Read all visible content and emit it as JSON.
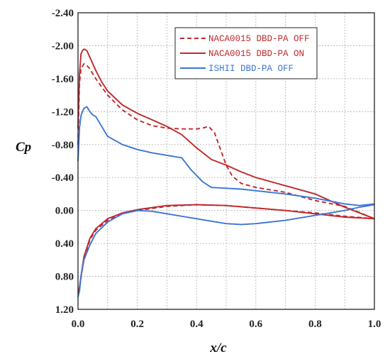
{
  "chart_data": {
    "type": "line",
    "title": "",
    "xlabel": "x/c",
    "ylabel": "Cp",
    "xlim": [
      0.0,
      1.0
    ],
    "ylim": [
      -2.4,
      1.2
    ],
    "y_inverted": true,
    "grid": true,
    "legend_position": "top-right",
    "x_ticks": [
      "0.0",
      "0.2",
      "0.4",
      "0.6",
      "0.8",
      "1.0"
    ],
    "y_ticks": [
      "-2.40",
      "-2.00",
      "-1.60",
      "-1.20",
      "-0.80",
      "-0.40",
      "0.00",
      "0.40",
      "0.80",
      "1.20"
    ],
    "series": [
      {
        "name": "NACA0015 DBD-PA OFF",
        "color": "#c0282d",
        "style": "dashed",
        "upper": {
          "x": [
            0.0,
            0.005,
            0.01,
            0.02,
            0.03,
            0.04,
            0.06,
            0.08,
            0.1,
            0.15,
            0.2,
            0.25,
            0.3,
            0.35,
            0.4,
            0.42,
            0.44,
            0.46,
            0.48,
            0.5,
            0.52,
            0.55,
            0.6,
            0.7,
            0.8,
            0.9,
            1.0
          ],
          "y": [
            -0.8,
            -1.55,
            -1.72,
            -1.78,
            -1.76,
            -1.72,
            -1.6,
            -1.5,
            -1.4,
            -1.22,
            -1.1,
            -1.03,
            -1.0,
            -0.99,
            -0.99,
            -1.0,
            -1.02,
            -0.95,
            -0.75,
            -0.55,
            -0.42,
            -0.33,
            -0.28,
            -0.22,
            -0.12,
            -0.05,
            0.1
          ]
        },
        "lower": {
          "x": [
            0.0,
            0.005,
            0.01,
            0.02,
            0.04,
            0.06,
            0.1,
            0.15,
            0.2,
            0.3,
            0.4,
            0.5,
            0.6,
            0.7,
            0.8,
            0.9,
            1.0
          ],
          "y": [
            1.0,
            0.95,
            0.82,
            0.58,
            0.36,
            0.24,
            0.12,
            0.04,
            0.0,
            -0.05,
            -0.07,
            -0.06,
            -0.03,
            0.0,
            0.03,
            0.07,
            0.1
          ]
        }
      },
      {
        "name": "NACA0015 DBD-PA ON",
        "color": "#c0282d",
        "style": "solid",
        "upper": {
          "x": [
            0.0,
            0.005,
            0.01,
            0.015,
            0.02,
            0.03,
            0.04,
            0.06,
            0.08,
            0.1,
            0.15,
            0.2,
            0.25,
            0.3,
            0.35,
            0.4,
            0.45,
            0.5,
            0.55,
            0.6,
            0.65,
            0.7,
            0.75,
            0.8,
            0.85,
            0.9,
            0.95,
            1.0
          ],
          "y": [
            -1.0,
            -1.65,
            -1.9,
            -1.94,
            -1.96,
            -1.94,
            -1.86,
            -1.7,
            -1.56,
            -1.45,
            -1.28,
            -1.18,
            -1.1,
            -1.02,
            -0.92,
            -0.76,
            -0.62,
            -0.55,
            -0.47,
            -0.4,
            -0.35,
            -0.3,
            -0.25,
            -0.2,
            -0.12,
            -0.04,
            0.03,
            0.1
          ]
        },
        "lower": {
          "x": [
            0.0,
            0.005,
            0.01,
            0.02,
            0.04,
            0.06,
            0.1,
            0.15,
            0.2,
            0.3,
            0.4,
            0.5,
            0.6,
            0.7,
            0.8,
            0.9,
            1.0
          ],
          "y": [
            1.0,
            0.93,
            0.8,
            0.56,
            0.34,
            0.22,
            0.1,
            0.03,
            -0.01,
            -0.06,
            -0.07,
            -0.06,
            -0.03,
            0.0,
            0.04,
            0.08,
            0.1
          ]
        }
      },
      {
        "name": "ISHII DBD-PA OFF",
        "color": "#3b76d6",
        "style": "solid",
        "upper": {
          "x": [
            0.0,
            0.005,
            0.01,
            0.015,
            0.02,
            0.03,
            0.04,
            0.05,
            0.06,
            0.08,
            0.1,
            0.15,
            0.2,
            0.25,
            0.3,
            0.35,
            0.38,
            0.42,
            0.45,
            0.5,
            0.55,
            0.6,
            0.7,
            0.8,
            0.9,
            0.95,
            1.0
          ],
          "y": [
            -0.6,
            -1.0,
            -1.15,
            -1.2,
            -1.24,
            -1.26,
            -1.2,
            -1.16,
            -1.14,
            -1.02,
            -0.9,
            -0.8,
            -0.74,
            -0.7,
            -0.67,
            -0.64,
            -0.5,
            -0.35,
            -0.28,
            -0.27,
            -0.26,
            -0.24,
            -0.2,
            -0.15,
            -0.08,
            -0.06,
            -0.08
          ]
        },
        "lower": {
          "x": [
            0.0,
            0.005,
            0.01,
            0.02,
            0.04,
            0.06,
            0.1,
            0.15,
            0.2,
            0.25,
            0.3,
            0.4,
            0.5,
            0.55,
            0.6,
            0.7,
            0.8,
            0.9,
            0.95,
            1.0
          ],
          "y": [
            1.05,
            0.98,
            0.8,
            0.6,
            0.42,
            0.28,
            0.14,
            0.04,
            0.0,
            0.01,
            0.04,
            0.1,
            0.16,
            0.17,
            0.16,
            0.12,
            0.06,
            0.0,
            -0.04,
            -0.07
          ]
        }
      }
    ]
  }
}
